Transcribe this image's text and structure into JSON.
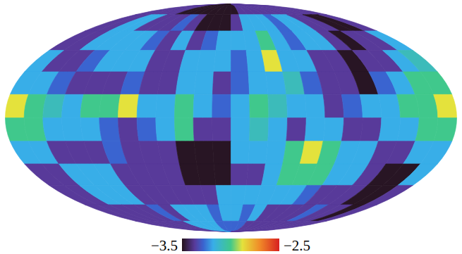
{
  "chart_data": {
    "type": "heatmap",
    "cells": [
      [
        -3.37,
        -3.37,
        -3.37,
        -3.37,
        -3.37,
        -3.49,
        -3.49,
        -3.49,
        -3.49,
        -3.49,
        -3.49,
        -3.49,
        -3.49,
        -3.37,
        -3.37,
        -3.37,
        -3.37,
        -3.37,
        -3.37,
        -3.37,
        -3.37,
        -3.37,
        -3.37,
        -3.37
      ],
      [
        -3.37,
        -3.37,
        -3.18,
        -3.18,
        -3.37,
        -3.37,
        -3.37,
        -3.28,
        -3.37,
        -3.49,
        -3.49,
        -3.49,
        -3.37,
        -3.18,
        -3.18,
        -3.18,
        -3.28,
        -3.18,
        -3.18,
        -3.37,
        -3.37,
        -3.49,
        -3.49,
        -3.37
      ],
      [
        -3.37,
        -3.37,
        -3.18,
        -3.18,
        -3.18,
        -3.18,
        -3.28,
        -3.37,
        -3.18,
        -3.37,
        -3.28,
        -3.18,
        -3.18,
        -3.18,
        -3.0,
        -3.18,
        -3.28,
        -3.18,
        -3.18,
        -3.37,
        -3.49,
        -3.37,
        -3.37,
        -3.18
      ],
      [
        -3.18,
        -3.37,
        -3.37,
        -3.28,
        -3.18,
        -3.18,
        -3.18,
        -3.37,
        -3.37,
        -3.18,
        -3.18,
        -3.18,
        -3.28,
        -3.18,
        -2.88,
        -3.18,
        -3.18,
        -3.37,
        -3.37,
        -3.49,
        -3.37,
        -3.37,
        -3.18,
        -3.09
      ],
      [
        -3.18,
        -3.18,
        -3.28,
        -3.37,
        -3.37,
        -3.37,
        -3.28,
        -3.37,
        -3.37,
        -3.18,
        -3.18,
        -3.37,
        -3.28,
        -3.18,
        -3.18,
        -3.09,
        -3.28,
        -3.37,
        -3.37,
        -3.49,
        -3.28,
        -3.18,
        -3.0,
        -3.0
      ],
      [
        -2.88,
        -3.0,
        -3.09,
        -3.18,
        -3.0,
        -3.0,
        -2.88,
        -3.18,
        -3.18,
        -3.0,
        -3.18,
        -3.28,
        -3.18,
        -3.0,
        -3.09,
        -3.18,
        -3.18,
        -3.37,
        -3.28,
        -3.18,
        -3.18,
        -3.0,
        -3.0,
        -2.88
      ],
      [
        -3.0,
        -3.0,
        -3.18,
        -3.18,
        -3.18,
        -3.28,
        -3.37,
        -3.28,
        -3.18,
        -3.0,
        -3.37,
        -3.37,
        -3.18,
        -3.09,
        -3.18,
        -3.37,
        -3.18,
        -3.18,
        -3.37,
        -3.37,
        -3.18,
        -3.18,
        -3.0,
        -3.0
      ],
      [
        -3.18,
        -3.18,
        -3.37,
        -3.37,
        -3.37,
        -3.28,
        -3.37,
        -3.37,
        -3.37,
        -3.49,
        -3.49,
        -3.49,
        -3.18,
        -3.18,
        -3.18,
        -3.0,
        -2.88,
        -3.0,
        -3.18,
        -3.18,
        -3.37,
        -3.37,
        -3.18,
        -3.18
      ],
      [
        -3.37,
        -3.37,
        -3.18,
        -3.18,
        -3.18,
        -3.37,
        -3.37,
        -3.37,
        -3.37,
        -3.49,
        -3.49,
        -3.49,
        -3.37,
        -3.37,
        -3.18,
        -3.0,
        -3.0,
        -3.0,
        -3.18,
        -3.18,
        -3.37,
        -3.49,
        -3.49,
        -3.18
      ],
      [
        -3.37,
        -3.37,
        -3.18,
        -3.18,
        -3.18,
        -3.37,
        -3.37,
        -3.37,
        -3.37,
        -3.37,
        -3.37,
        -3.18,
        -3.18,
        -3.18,
        -3.18,
        -3.18,
        -3.18,
        -3.28,
        -3.37,
        -3.37,
        -3.37,
        -3.49,
        -3.49,
        -3.37
      ],
      [
        -3.37,
        -3.37,
        -3.37,
        -3.37,
        -3.37,
        -3.28,
        -3.37,
        -3.18,
        -3.18,
        -3.18,
        -3.28,
        -3.18,
        -3.18,
        -3.28,
        -3.18,
        -3.37,
        -3.37,
        -3.37,
        -3.37,
        -3.28,
        -3.37,
        -3.37,
        -3.49,
        -3.37
      ],
      [
        -3.37,
        -3.37,
        -3.37,
        -3.37,
        -3.37,
        -3.37,
        -3.18,
        -3.18,
        -3.18,
        -3.18,
        -3.28,
        -3.28,
        -3.28,
        -3.28,
        -3.37,
        -3.37,
        -3.37,
        -3.37,
        -3.37,
        -3.37,
        -3.37,
        -3.37,
        -3.37,
        -3.37
      ]
    ],
    "color_range": [
      -3.5,
      -2.5
    ],
    "color_ticks": [
      {
        "value": -3.5,
        "label": "−3.5"
      },
      {
        "value": -2.5,
        "label": "−2.5"
      }
    ]
  }
}
